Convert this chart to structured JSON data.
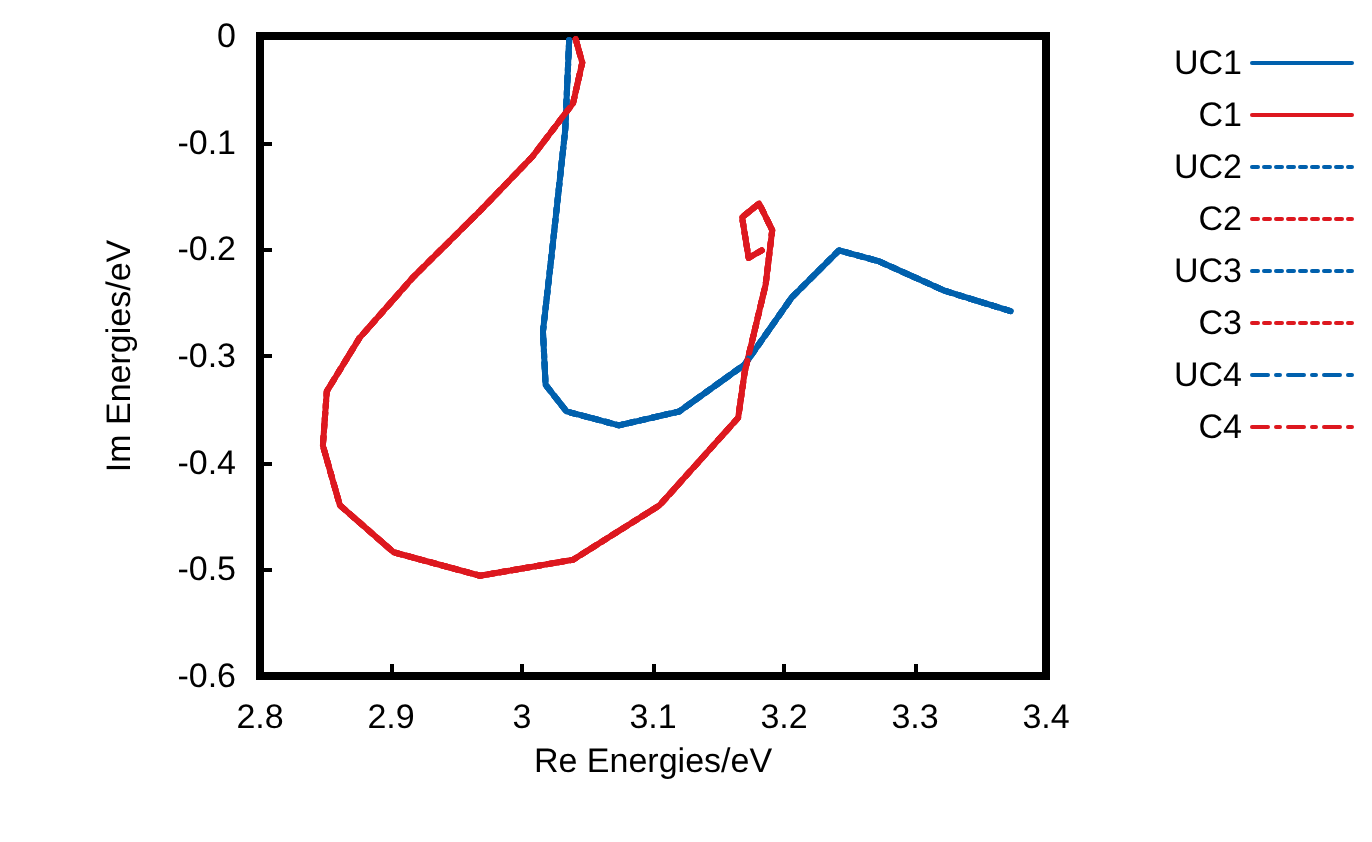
{
  "chart_data": {
    "type": "line",
    "xlabel": "Re Energies/eV",
    "ylabel": "Im Energies/eV",
    "xlim": [
      2.8,
      3.4
    ],
    "ylim": [
      -0.6,
      0
    ],
    "xticks": [
      2.8,
      2.9,
      3,
      3.1,
      3.2,
      3.3,
      3.4
    ],
    "yticks": [
      -0.6,
      -0.5,
      -0.4,
      -0.3,
      -0.2,
      -0.1,
      0
    ],
    "grid": false,
    "legend": "top right",
    "series": [
      {
        "name": "UC1",
        "color": "#0060ad",
        "line_style": "solid",
        "x": [
          3.036,
          3.033,
          3.023,
          3.016,
          3.018,
          3.034,
          3.074,
          3.12,
          3.17,
          3.206,
          3.242,
          3.272,
          3.323,
          3.373
        ],
        "values": [
          -0.004,
          -0.088,
          -0.201,
          -0.277,
          -0.327,
          -0.352,
          -0.365,
          -0.352,
          -0.308,
          -0.245,
          -0.201,
          -0.211,
          -0.239,
          -0.258
        ]
      },
      {
        "name": "C1",
        "color": "#dd181f",
        "line_style": "solid",
        "x": [
          3.041,
          3.046,
          3.039,
          3.008,
          2.968,
          2.917,
          2.876,
          2.851,
          2.848,
          2.861,
          2.902,
          2.968,
          3.039,
          3.105,
          3.165,
          3.17,
          3.186,
          3.191,
          3.181,
          3.168,
          3.173,
          3.183
        ],
        "values": [
          -0.003,
          -0.025,
          -0.063,
          -0.113,
          -0.164,
          -0.226,
          -0.283,
          -0.333,
          -0.384,
          -0.44,
          -0.484,
          -0.506,
          -0.491,
          -0.44,
          -0.358,
          -0.315,
          -0.233,
          -0.182,
          -0.157,
          -0.17,
          -0.208,
          -0.201
        ]
      },
      {
        "name": "UC2",
        "color": "#0060ad",
        "line_style": "dotted",
        "x": [
          3.036,
          3.033,
          3.023,
          3.016,
          3.018,
          3.034,
          3.074,
          3.12,
          3.17,
          3.206,
          3.242,
          3.272,
          3.323,
          3.373
        ],
        "values": [
          -0.004,
          -0.088,
          -0.201,
          -0.277,
          -0.327,
          -0.352,
          -0.365,
          -0.352,
          -0.308,
          -0.245,
          -0.201,
          -0.211,
          -0.239,
          -0.258
        ]
      },
      {
        "name": "C2",
        "color": "#dd181f",
        "line_style": "dotted",
        "x": [
          3.041,
          3.046,
          3.039,
          3.008,
          2.968,
          2.917,
          2.876,
          2.851,
          2.848,
          2.861,
          2.902,
          2.968,
          3.039,
          3.105,
          3.165,
          3.17,
          3.186,
          3.191,
          3.181,
          3.168,
          3.173,
          3.183
        ],
        "values": [
          -0.003,
          -0.025,
          -0.063,
          -0.113,
          -0.164,
          -0.226,
          -0.283,
          -0.333,
          -0.384,
          -0.44,
          -0.484,
          -0.506,
          -0.491,
          -0.44,
          -0.358,
          -0.315,
          -0.233,
          -0.182,
          -0.157,
          -0.17,
          -0.208,
          -0.201
        ]
      },
      {
        "name": "UC3",
        "color": "#0060ad",
        "line_style": "dotted",
        "x": [
          3.036,
          3.033,
          3.023,
          3.016,
          3.018,
          3.034,
          3.074,
          3.12,
          3.17,
          3.206,
          3.242,
          3.272,
          3.323,
          3.373
        ],
        "values": [
          -0.004,
          -0.088,
          -0.201,
          -0.277,
          -0.327,
          -0.352,
          -0.365,
          -0.352,
          -0.308,
          -0.245,
          -0.201,
          -0.211,
          -0.239,
          -0.258
        ]
      },
      {
        "name": "C3",
        "color": "#dd181f",
        "line_style": "dotted",
        "x": [
          3.041,
          3.046,
          3.039,
          3.008,
          2.968,
          2.917,
          2.876,
          2.851,
          2.848,
          2.861,
          2.902,
          2.968,
          3.039,
          3.105,
          3.165,
          3.17,
          3.186,
          3.191,
          3.181,
          3.168,
          3.173,
          3.183
        ],
        "values": [
          -0.003,
          -0.025,
          -0.063,
          -0.113,
          -0.164,
          -0.226,
          -0.283,
          -0.333,
          -0.384,
          -0.44,
          -0.484,
          -0.506,
          -0.491,
          -0.44,
          -0.358,
          -0.315,
          -0.233,
          -0.182,
          -0.157,
          -0.17,
          -0.208,
          -0.201
        ]
      },
      {
        "name": "UC4",
        "color": "#0060ad",
        "line_style": "dashed",
        "x": [
          3.036,
          3.033,
          3.023,
          3.016,
          3.018,
          3.034,
          3.074,
          3.12,
          3.17,
          3.206,
          3.242,
          3.272,
          3.323,
          3.373
        ],
        "values": [
          -0.004,
          -0.088,
          -0.201,
          -0.277,
          -0.327,
          -0.352,
          -0.365,
          -0.352,
          -0.308,
          -0.245,
          -0.201,
          -0.211,
          -0.239,
          -0.258
        ]
      },
      {
        "name": "C4",
        "color": "#dd181f",
        "line_style": "dashed",
        "x": [
          3.041,
          3.046,
          3.039,
          3.008,
          2.968,
          2.917,
          2.876,
          2.851,
          2.848,
          2.861,
          2.902,
          2.968,
          3.039,
          3.105,
          3.165,
          3.17,
          3.186,
          3.191,
          3.181,
          3.168,
          3.173,
          3.183
        ],
        "values": [
          -0.003,
          -0.025,
          -0.063,
          -0.113,
          -0.164,
          -0.226,
          -0.283,
          -0.333,
          -0.384,
          -0.44,
          -0.484,
          -0.506,
          -0.491,
          -0.44,
          -0.358,
          -0.315,
          -0.233,
          -0.182,
          -0.157,
          -0.17,
          -0.208,
          -0.201
        ]
      }
    ]
  }
}
